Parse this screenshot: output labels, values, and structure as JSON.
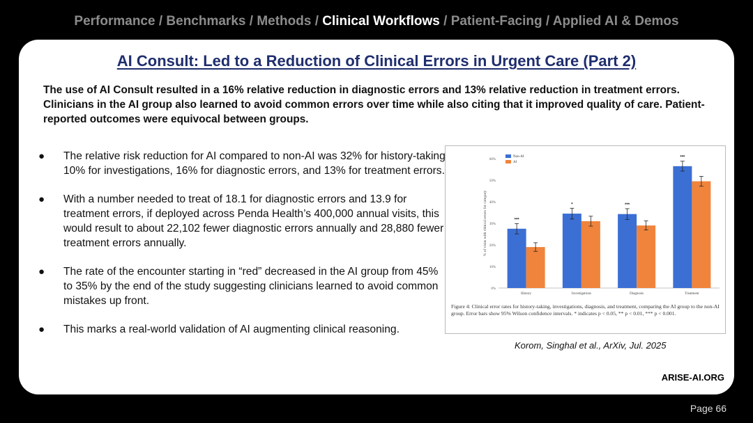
{
  "nav": {
    "items": [
      {
        "label": "Performance",
        "active": false
      },
      {
        "label": "Benchmarks",
        "active": false
      },
      {
        "label": "Methods",
        "active": false
      },
      {
        "label": "Clinical Workflows",
        "active": true
      },
      {
        "label": "Patient-Facing",
        "active": false
      },
      {
        "label": "Applied AI & Demos",
        "active": false
      }
    ],
    "separator": " / "
  },
  "slide": {
    "title": "AI Consult: Led to a Reduction of Clinical Errors in Urgent Care (Part 2)",
    "summary": "The use of AI Consult resulted in a 16% relative reduction in diagnostic errors and 13% relative reduction in treatment errors. Clinicians in the AI group also learned to avoid common errors over time while also citing that it improved quality of care. Patient-reported outcomes were equivocal between groups.",
    "bullets": [
      "The relative risk reduction for AI compared to non-AI was 32% for history-taking, 10% for investigations, 16% for diagnostic errors, and 13% for treatment errors.",
      "With a number needed to treat of 18.1 for diagnostic errors and 13.9 for treatment errors, if deployed across Penda Health’s 400,000 annual visits, this would result to about 22,102 fewer diagnostic errors annually and 28,880 fewer treatment errors annually.",
      "The rate of the encounter starting in “red” decreased in the AI group from 45% to 35% by the end of the study suggesting clinicians learned to avoid common mistakes up front.",
      "This marks a real-world validation of AI augmenting clinical reasoning."
    ],
    "bullet_symbol": "●",
    "citation": "Korom, Singhal et al., ArXiv, Jul. 2025",
    "brand": "ARISE-AI.ORG",
    "page": "Page 66"
  },
  "chart_data": {
    "type": "bar",
    "categories": [
      "History",
      "Investigations",
      "Diagnosis",
      "Treatment"
    ],
    "series": [
      {
        "name": "Non-AI",
        "color": "#3b6fd4",
        "values": [
          27.5,
          34.5,
          34.3,
          56.5
        ],
        "errors": [
          2.4,
          2.5,
          2.5,
          2.3
        ]
      },
      {
        "name": "AI",
        "color": "#f0843c",
        "values": [
          19.0,
          31.0,
          29.0,
          49.5
        ],
        "errors": [
          2.0,
          2.3,
          2.1,
          2.3
        ]
      }
    ],
    "significance": [
      "***",
      "*",
      "***",
      "***"
    ],
    "ylabel": "% of visits with clinical errors for category",
    "yticks": [
      "0%",
      "10%",
      "20%",
      "30%",
      "40%",
      "50%",
      "60%"
    ],
    "ylim": [
      0,
      60
    ],
    "legend": "top-left",
    "caption": "Figure 4: Clinical error rates for history-taking, investigations, diagnosis, and treatment, comparing the AI group to the non-AI group. Error bars show 95% Wilson confidence intervals. * indicates p < 0.05, ** p < 0.01, *** p < 0.001."
  }
}
